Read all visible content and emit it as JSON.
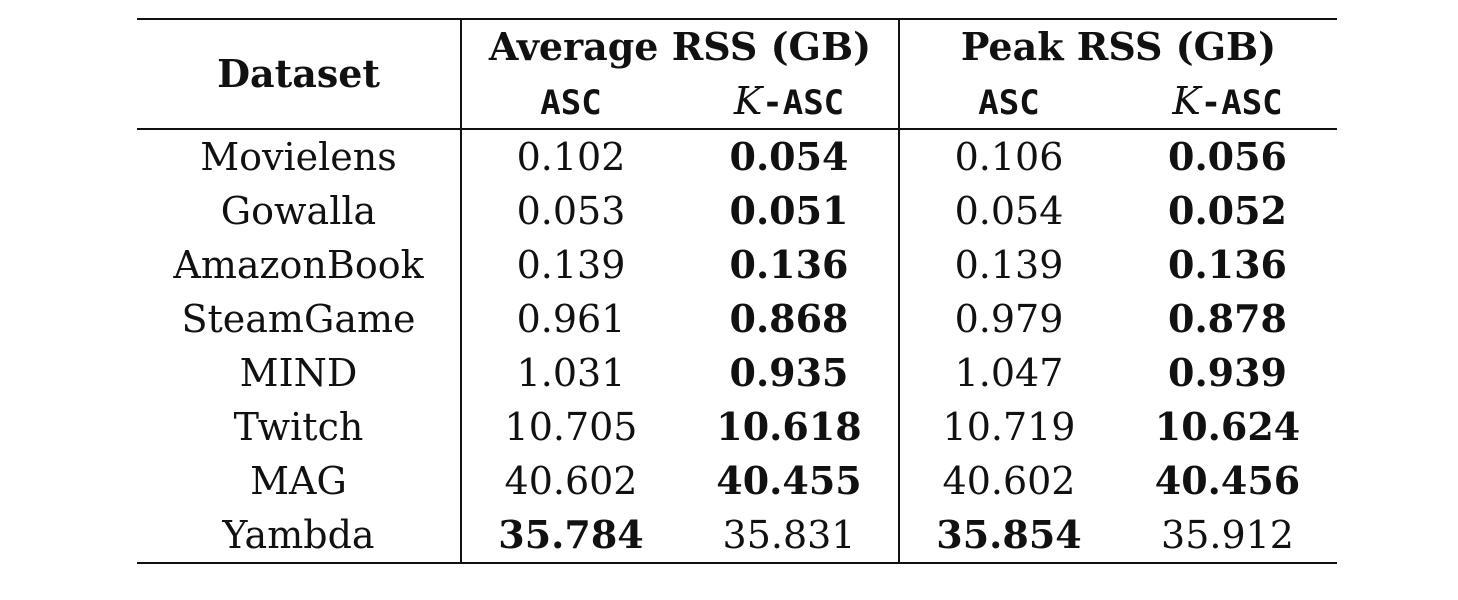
{
  "table": {
    "header": {
      "dataset_label": "Dataset",
      "groups": [
        {
          "title": "Average RSS (GB)",
          "subcols": [
            {
              "label": "ASC",
              "prefix": ""
            },
            {
              "label": "-ASC",
              "prefix": "K"
            }
          ]
        },
        {
          "title": "Peak RSS (GB)",
          "subcols": [
            {
              "label": "ASC",
              "prefix": ""
            },
            {
              "label": "-ASC",
              "prefix": "K"
            }
          ]
        }
      ]
    },
    "rows": [
      {
        "dataset": "Movielens",
        "values": [
          "0.102",
          "0.054",
          "0.106",
          "0.056"
        ],
        "bold": [
          false,
          true,
          false,
          true
        ]
      },
      {
        "dataset": "Gowalla",
        "values": [
          "0.053",
          "0.051",
          "0.054",
          "0.052"
        ],
        "bold": [
          false,
          true,
          false,
          true
        ]
      },
      {
        "dataset": "AmazonBook",
        "values": [
          "0.139",
          "0.136",
          "0.139",
          "0.136"
        ],
        "bold": [
          false,
          true,
          false,
          true
        ]
      },
      {
        "dataset": "SteamGame",
        "values": [
          "0.961",
          "0.868",
          "0.979",
          "0.878"
        ],
        "bold": [
          false,
          true,
          false,
          true
        ]
      },
      {
        "dataset": "MIND",
        "values": [
          "1.031",
          "0.935",
          "1.047",
          "0.939"
        ],
        "bold": [
          false,
          true,
          false,
          true
        ]
      },
      {
        "dataset": "Twitch",
        "values": [
          "10.705",
          "10.618",
          "10.719",
          "10.624"
        ],
        "bold": [
          false,
          true,
          false,
          true
        ]
      },
      {
        "dataset": "MAG",
        "values": [
          "40.602",
          "40.455",
          "40.602",
          "40.456"
        ],
        "bold": [
          false,
          true,
          false,
          true
        ]
      },
      {
        "dataset": "Yambda",
        "values": [
          "35.784",
          "35.831",
          "35.854",
          "35.912"
        ],
        "bold": [
          true,
          false,
          true,
          false
        ]
      }
    ]
  }
}
